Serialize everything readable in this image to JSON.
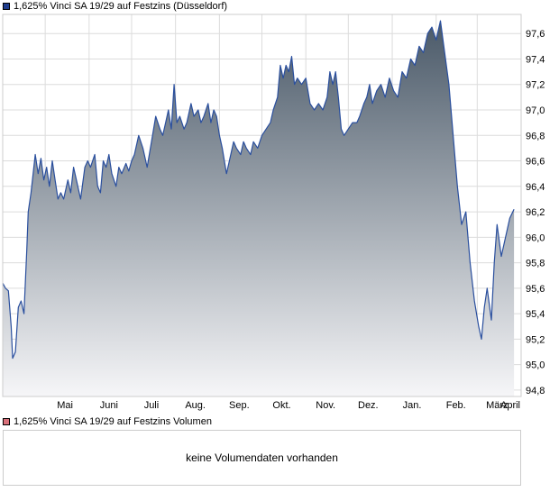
{
  "colors": {
    "line": "#2a4f9e",
    "fill_top": "#4a5968",
    "fill_bottom": "#f6f6f8",
    "price_swatch": "#1e3c8c",
    "volume_swatch": "#d9707a",
    "grid": "#dcdcdc"
  },
  "legend": {
    "price_label": "1,625% Vinci SA 19/29 auf Festzins (Düsseldorf)",
    "volume_label": "1,625% Vinci SA 19/29 auf Festzins Volumen"
  },
  "volume": {
    "empty_message": "keine Volumendaten vorhanden"
  },
  "chart_data": {
    "type": "area",
    "title": "",
    "xlabel": "",
    "ylabel": "",
    "ylim": [
      94.75,
      97.75
    ],
    "yticks": [
      94.8,
      95.0,
      95.2,
      95.4,
      95.6,
      95.8,
      96.0,
      96.2,
      96.4,
      96.6,
      96.8,
      97.0,
      97.2,
      97.4,
      97.6
    ],
    "ytick_labels": [
      "94,8",
      "95,0",
      "95,2",
      "95,4",
      "95,6",
      "95,8",
      "96,0",
      "96,2",
      "96,4",
      "96,6",
      "96,8",
      "97,0",
      "97,2",
      "97,4",
      "97,6"
    ],
    "xtick_labels": [
      "Mai",
      "Juni",
      "Juli",
      "Aug.",
      "Sep.",
      "Okt.",
      "Nov.",
      "Dez.",
      "Jan.",
      "Feb.",
      "März",
      "April"
    ],
    "grid": true,
    "series": [
      {
        "name": "1,625% Vinci SA 19/29 auf Festzins (Düsseldorf)",
        "points": [
          [
            "2023-04-01",
            95.64
          ],
          [
            "2023-04-03",
            95.6
          ],
          [
            "2023-04-05",
            95.58
          ],
          [
            "2023-04-07",
            95.3
          ],
          [
            "2023-04-08",
            95.05
          ],
          [
            "2023-04-10",
            95.1
          ],
          [
            "2023-04-12",
            95.45
          ],
          [
            "2023-04-14",
            95.5
          ],
          [
            "2023-04-16",
            95.4
          ],
          [
            "2023-04-18",
            95.9
          ],
          [
            "2023-04-19",
            96.2
          ],
          [
            "2023-04-21",
            96.35
          ],
          [
            "2023-04-24",
            96.65
          ],
          [
            "2023-04-26",
            96.5
          ],
          [
            "2023-04-28",
            96.62
          ],
          [
            "2023-04-30",
            96.45
          ],
          [
            "2023-05-02",
            96.55
          ],
          [
            "2023-05-04",
            96.4
          ],
          [
            "2023-05-06",
            96.6
          ],
          [
            "2023-05-08",
            96.45
          ],
          [
            "2023-05-10",
            96.3
          ],
          [
            "2023-05-12",
            96.35
          ],
          [
            "2023-05-14",
            96.3
          ],
          [
            "2023-05-17",
            96.45
          ],
          [
            "2023-05-19",
            96.35
          ],
          [
            "2023-05-21",
            96.55
          ],
          [
            "2023-05-24",
            96.4
          ],
          [
            "2023-05-26",
            96.3
          ],
          [
            "2023-05-29",
            96.55
          ],
          [
            "2023-05-31",
            96.6
          ],
          [
            "2023-06-02",
            96.55
          ],
          [
            "2023-06-05",
            96.65
          ],
          [
            "2023-06-07",
            96.4
          ],
          [
            "2023-06-09",
            96.35
          ],
          [
            "2023-06-11",
            96.6
          ],
          [
            "2023-06-13",
            96.55
          ],
          [
            "2023-06-15",
            96.65
          ],
          [
            "2023-06-17",
            96.5
          ],
          [
            "2023-06-20",
            96.4
          ],
          [
            "2023-06-22",
            96.55
          ],
          [
            "2023-06-24",
            96.5
          ],
          [
            "2023-06-27",
            96.58
          ],
          [
            "2023-06-29",
            96.52
          ],
          [
            "2023-07-01",
            96.6
          ],
          [
            "2023-07-03",
            96.65
          ],
          [
            "2023-07-06",
            96.8
          ],
          [
            "2023-07-09",
            96.7
          ],
          [
            "2023-07-12",
            96.55
          ],
          [
            "2023-07-15",
            96.75
          ],
          [
            "2023-07-18",
            96.95
          ],
          [
            "2023-07-21",
            96.85
          ],
          [
            "2023-07-23",
            96.8
          ],
          [
            "2023-07-25",
            96.9
          ],
          [
            "2023-07-27",
            97.0
          ],
          [
            "2023-07-29",
            96.85
          ],
          [
            "2023-07-31",
            97.2
          ],
          [
            "2023-08-02",
            96.9
          ],
          [
            "2023-08-04",
            96.95
          ],
          [
            "2023-08-07",
            96.85
          ],
          [
            "2023-08-09",
            96.9
          ],
          [
            "2023-08-12",
            97.05
          ],
          [
            "2023-08-14",
            96.95
          ],
          [
            "2023-08-17",
            97.0
          ],
          [
            "2023-08-19",
            96.9
          ],
          [
            "2023-08-21",
            96.95
          ],
          [
            "2023-08-24",
            97.05
          ],
          [
            "2023-08-26",
            96.9
          ],
          [
            "2023-08-28",
            97.0
          ],
          [
            "2023-08-30",
            96.95
          ],
          [
            "2023-09-01",
            96.8
          ],
          [
            "2023-09-03",
            96.7
          ],
          [
            "2023-09-06",
            96.5
          ],
          [
            "2023-09-08",
            96.6
          ],
          [
            "2023-09-11",
            96.75
          ],
          [
            "2023-09-13",
            96.7
          ],
          [
            "2023-09-16",
            96.65
          ],
          [
            "2023-09-18",
            96.75
          ],
          [
            "2023-09-20",
            96.7
          ],
          [
            "2023-09-23",
            96.65
          ],
          [
            "2023-09-25",
            96.75
          ],
          [
            "2023-09-28",
            96.7
          ],
          [
            "2023-10-01",
            96.8
          ],
          [
            "2023-10-04",
            96.85
          ],
          [
            "2023-10-07",
            96.9
          ],
          [
            "2023-10-09",
            97.0
          ],
          [
            "2023-10-12",
            97.1
          ],
          [
            "2023-10-14",
            97.35
          ],
          [
            "2023-10-16",
            97.25
          ],
          [
            "2023-10-18",
            97.35
          ],
          [
            "2023-10-20",
            97.3
          ],
          [
            "2023-10-22",
            97.42
          ],
          [
            "2023-10-24",
            97.2
          ],
          [
            "2023-10-26",
            97.25
          ],
          [
            "2023-10-29",
            97.2
          ],
          [
            "2023-11-01",
            97.25
          ],
          [
            "2023-11-04",
            97.05
          ],
          [
            "2023-11-07",
            97.0
          ],
          [
            "2023-11-10",
            97.05
          ],
          [
            "2023-11-13",
            97.0
          ],
          [
            "2023-11-16",
            97.1
          ],
          [
            "2023-11-18",
            97.3
          ],
          [
            "2023-11-20",
            97.2
          ],
          [
            "2023-11-22",
            97.3
          ],
          [
            "2023-11-24",
            97.1
          ],
          [
            "2023-11-26",
            96.85
          ],
          [
            "2023-11-28",
            96.8
          ],
          [
            "2023-12-01",
            96.85
          ],
          [
            "2023-12-04",
            96.9
          ],
          [
            "2023-12-07",
            96.9
          ],
          [
            "2023-12-09",
            96.95
          ],
          [
            "2023-12-12",
            97.05
          ],
          [
            "2023-12-14",
            97.1
          ],
          [
            "2023-12-16",
            97.2
          ],
          [
            "2023-12-18",
            97.05
          ],
          [
            "2023-12-21",
            97.15
          ],
          [
            "2023-12-24",
            97.2
          ],
          [
            "2023-12-27",
            97.1
          ],
          [
            "2023-12-30",
            97.25
          ],
          [
            "2024-01-02",
            97.15
          ],
          [
            "2024-01-05",
            97.1
          ],
          [
            "2024-01-08",
            97.3
          ],
          [
            "2024-01-11",
            97.25
          ],
          [
            "2024-01-14",
            97.4
          ],
          [
            "2024-01-17",
            97.35
          ],
          [
            "2024-01-20",
            97.5
          ],
          [
            "2024-01-23",
            97.45
          ],
          [
            "2024-01-26",
            97.6
          ],
          [
            "2024-01-29",
            97.65
          ],
          [
            "2024-02-01",
            97.55
          ],
          [
            "2024-02-04",
            97.7
          ],
          [
            "2024-02-07",
            97.45
          ],
          [
            "2024-02-10",
            97.2
          ],
          [
            "2024-02-13",
            96.8
          ],
          [
            "2024-02-16",
            96.4
          ],
          [
            "2024-02-19",
            96.1
          ],
          [
            "2024-02-22",
            96.2
          ],
          [
            "2024-02-25",
            95.8
          ],
          [
            "2024-02-28",
            95.5
          ],
          [
            "2024-03-02",
            95.3
          ],
          [
            "2024-03-04",
            95.2
          ],
          [
            "2024-03-06",
            95.45
          ],
          [
            "2024-03-08",
            95.6
          ],
          [
            "2024-03-11",
            95.35
          ],
          [
            "2024-03-13",
            95.8
          ],
          [
            "2024-03-15",
            96.1
          ],
          [
            "2024-03-18",
            95.85
          ],
          [
            "2024-03-21",
            96.0
          ],
          [
            "2024-03-24",
            96.15
          ],
          [
            "2024-03-27",
            96.22
          ]
        ]
      }
    ]
  }
}
